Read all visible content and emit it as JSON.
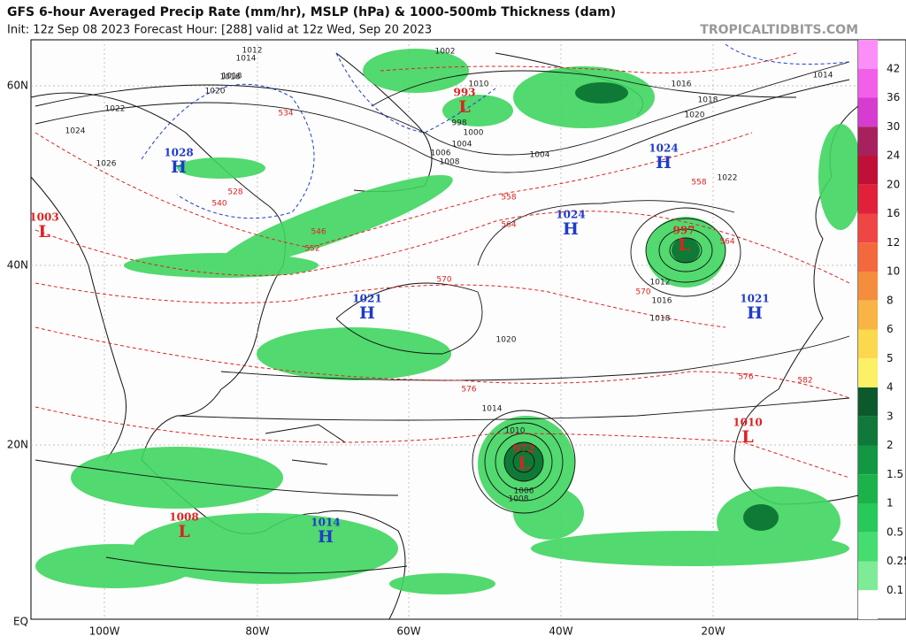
{
  "header": {
    "title": "GFS 6-hour Averaged Precip Rate (mm/hr), MSLP (hPa) & 1000-500mb Thickness (dam)",
    "subtitle": "Init: 12z Sep 08 2023   Forecast Hour: [288]   valid at 12z Wed, Sep 20 2023",
    "watermark": "TROPICALTIDBITS.COM"
  },
  "axes": {
    "latitude": [
      "60N",
      "40N",
      "20N",
      "EQ"
    ],
    "longitude": [
      "100W",
      "80W",
      "60W",
      "40W",
      "20W"
    ]
  },
  "pressure_centers": [
    {
      "letter": "H",
      "value": "1028",
      "color": "#1e3cc8"
    },
    {
      "letter": "L",
      "value": "1003",
      "color": "#d22"
    },
    {
      "letter": "L",
      "value": "993",
      "color": "#d22"
    },
    {
      "letter": "H",
      "value": "1024",
      "color": "#1e3cc8"
    },
    {
      "letter": "H",
      "value": "1024",
      "color": "#1e3cc8"
    },
    {
      "letter": "L",
      "value": "997",
      "color": "#d22"
    },
    {
      "letter": "H",
      "value": "1021",
      "color": "#1e3cc8"
    },
    {
      "letter": "H",
      "value": "1021",
      "color": "#1e3cc8"
    },
    {
      "letter": "L",
      "value": "1010",
      "color": "#d22"
    },
    {
      "letter": "L",
      "value": "972",
      "color": "#d22"
    },
    {
      "letter": "L",
      "value": "1008",
      "color": "#d22"
    },
    {
      "letter": "H",
      "value": "1014",
      "color": "#1e3cc8"
    }
  ],
  "isobar_labels": [
    "1012",
    "1014",
    "1016",
    "1018",
    "1020",
    "1022",
    "1024",
    "1026",
    "1002",
    "1004",
    "1006",
    "1008",
    "1010",
    "998",
    "1000",
    "1004",
    "1020",
    "1018",
    "1016",
    "1014",
    "1012",
    "1010",
    "1006",
    "1008",
    "1012",
    "1016",
    "1018",
    "1020",
    "1022",
    "1014"
  ],
  "thickness_labels": [
    "564",
    "570",
    "576",
    "558",
    "552",
    "546",
    "540",
    "534",
    "528",
    "582",
    "570",
    "576",
    "564",
    "558"
  ],
  "colorbar": {
    "labels": [
      "42",
      "36",
      "30",
      "24",
      "20",
      "16",
      "12",
      "10",
      "8",
      "6",
      "5",
      "4",
      "3",
      "2",
      "1.5",
      "1",
      "0.5",
      "0.25",
      "0.1"
    ],
    "colors": [
      "#fb8ff7",
      "#f25fe9",
      "#d63ccf",
      "#a8215f",
      "#c01037",
      "#e0213a",
      "#f04545",
      "#f3683d",
      "#f58e3c",
      "#f8b444",
      "#fbd84e",
      "#fbf066",
      "#0c5a2c",
      "#10783a",
      "#139742",
      "#1bb24c",
      "#27c95a",
      "#45dc70",
      "#7eec97",
      "#ffffff"
    ]
  }
}
